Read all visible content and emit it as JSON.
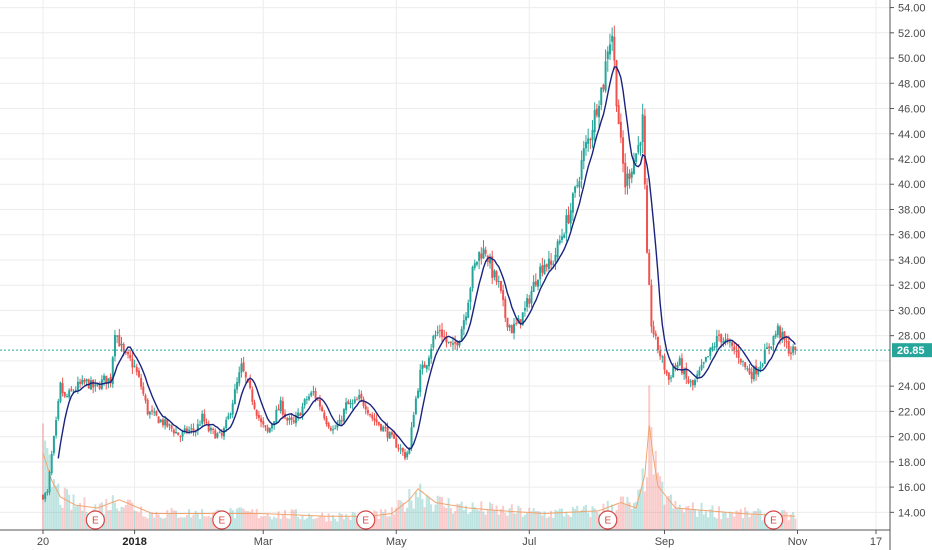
{
  "chart_data": {
    "type": "candlestick",
    "y_axis": {
      "ticks": [
        "14.00",
        "16.00",
        "18.00",
        "20.00",
        "22.00",
        "24.00",
        "26.00",
        "28.00",
        "30.00",
        "32.00",
        "34.00",
        "36.00",
        "38.00",
        "40.00",
        "42.00",
        "44.00",
        "46.00",
        "48.00",
        "50.00",
        "52.00",
        "54.00"
      ],
      "ylim": [
        12.6,
        54.6
      ],
      "grid": true
    },
    "x_axis": {
      "labels": [
        {
          "text": "20",
          "bold": false,
          "day": 0
        },
        {
          "text": "2018",
          "bold": true,
          "day": 42
        },
        {
          "text": "Mar",
          "bold": false,
          "day": 101
        },
        {
          "text": "May",
          "bold": false,
          "day": 162
        },
        {
          "text": "Jul",
          "bold": false,
          "day": 223
        },
        {
          "text": "Sep",
          "bold": false,
          "day": 285
        },
        {
          "text": "Nov",
          "bold": false,
          "day": 346
        },
        {
          "text": "17",
          "bold": false,
          "day": 382
        }
      ],
      "day_range": [
        -1,
        383
      ]
    },
    "price_path": [
      [
        0,
        15.3
      ],
      [
        2,
        15.5
      ],
      [
        4,
        18.5
      ],
      [
        6,
        21
      ],
      [
        8,
        24
      ],
      [
        10,
        23
      ],
      [
        13,
        23.5
      ],
      [
        16,
        24
      ],
      [
        20,
        24.3
      ],
      [
        24,
        23.8
      ],
      [
        28,
        24.5
      ],
      [
        31,
        24.5
      ],
      [
        33,
        28.5
      ],
      [
        35,
        27.5
      ],
      [
        37,
        26.5
      ],
      [
        40,
        26
      ],
      [
        42,
        25.5
      ],
      [
        45,
        24
      ],
      [
        48,
        22
      ],
      [
        52,
        21.5
      ],
      [
        56,
        21
      ],
      [
        60,
        20.5
      ],
      [
        63,
        20
      ],
      [
        66,
        20.5
      ],
      [
        70,
        20.5
      ],
      [
        73,
        21.5
      ],
      [
        76,
        20.5
      ],
      [
        79,
        20.2
      ],
      [
        82,
        20
      ],
      [
        85,
        21.5
      ],
      [
        88,
        23.5
      ],
      [
        91,
        25.5
      ],
      [
        94,
        24
      ],
      [
        97,
        22.5
      ],
      [
        100,
        21
      ],
      [
        103,
        20.3
      ],
      [
        106,
        21.5
      ],
      [
        109,
        22.5
      ],
      [
        112,
        21.3
      ],
      [
        115,
        21
      ],
      [
        118,
        22
      ],
      [
        121,
        23
      ],
      [
        124,
        23.5
      ],
      [
        127,
        22.5
      ],
      [
        130,
        21.3
      ],
      [
        133,
        20.5
      ],
      [
        136,
        21
      ],
      [
        139,
        22.5
      ],
      [
        142,
        22.5
      ],
      [
        145,
        23
      ],
      [
        148,
        22.5
      ],
      [
        151,
        21.5
      ],
      [
        154,
        21
      ],
      [
        157,
        20.5
      ],
      [
        160,
        19.8
      ],
      [
        163,
        19.2
      ],
      [
        166,
        18.5
      ],
      [
        168,
        19
      ],
      [
        170,
        22
      ],
      [
        173,
        25
      ],
      [
        176,
        26
      ],
      [
        179,
        27.8
      ],
      [
        182,
        28.5
      ],
      [
        185,
        27.5
      ],
      [
        188,
        27
      ],
      [
        191,
        28
      ],
      [
        194,
        30
      ],
      [
        197,
        33
      ],
      [
        200,
        34.5
      ],
      [
        203,
        34.8
      ],
      [
        206,
        33
      ],
      [
        209,
        32
      ],
      [
        212,
        29.5
      ],
      [
        215,
        28.5
      ],
      [
        218,
        29
      ],
      [
        221,
        30
      ],
      [
        224,
        31.5
      ],
      [
        227,
        33
      ],
      [
        230,
        33.8
      ],
      [
        233,
        33.5
      ],
      [
        236,
        35
      ],
      [
        239,
        36.5
      ],
      [
        242,
        38
      ],
      [
        245,
        40
      ],
      [
        248,
        42.5
      ],
      [
        251,
        44
      ],
      [
        253,
        45.5
      ],
      [
        255,
        47
      ],
      [
        257,
        48
      ],
      [
        259,
        51
      ],
      [
        261,
        52
      ],
      [
        263,
        47
      ],
      [
        265,
        43
      ],
      [
        267,
        40
      ],
      [
        269,
        41
      ],
      [
        271,
        42
      ],
      [
        273,
        43
      ],
      [
        275,
        45
      ],
      [
        277,
        34
      ],
      [
        279,
        29
      ],
      [
        281,
        27.5
      ],
      [
        283,
        26.5
      ],
      [
        285,
        25.5
      ],
      [
        287,
        24.5
      ],
      [
        289,
        25.5
      ],
      [
        292,
        25.8
      ],
      [
        295,
        24.5
      ],
      [
        298,
        24
      ],
      [
        301,
        25
      ],
      [
        304,
        26
      ],
      [
        307,
        27
      ],
      [
        310,
        28
      ],
      [
        313,
        27.5
      ],
      [
        316,
        27
      ],
      [
        319,
        26.5
      ],
      [
        322,
        25.5
      ],
      [
        325,
        25
      ],
      [
        328,
        25.5
      ],
      [
        331,
        26.5
      ],
      [
        334,
        27.5
      ],
      [
        337,
        28.5
      ],
      [
        340,
        27.5
      ],
      [
        343,
        26.7
      ],
      [
        345,
        26.85
      ]
    ],
    "volume_path": [
      [
        0,
        1.4
      ],
      [
        4,
        0.9
      ],
      [
        8,
        0.6
      ],
      [
        15,
        0.45
      ],
      [
        25,
        0.4
      ],
      [
        35,
        0.55
      ],
      [
        50,
        0.3
      ],
      [
        80,
        0.3
      ],
      [
        100,
        0.3
      ],
      [
        130,
        0.25
      ],
      [
        150,
        0.25
      ],
      [
        160,
        0.3
      ],
      [
        168,
        0.55
      ],
      [
        172,
        0.75
      ],
      [
        180,
        0.5
      ],
      [
        195,
        0.4
      ],
      [
        210,
        0.35
      ],
      [
        230,
        0.3
      ],
      [
        255,
        0.35
      ],
      [
        265,
        0.5
      ],
      [
        272,
        0.4
      ],
      [
        276,
        1.0
      ],
      [
        278,
        1.9
      ],
      [
        280,
        1.3
      ],
      [
        282,
        0.8
      ],
      [
        290,
        0.4
      ],
      [
        320,
        0.3
      ],
      [
        345,
        0.25
      ]
    ],
    "moving_average": {
      "period": 5,
      "color": "#1a237e"
    },
    "volume_ma_color": "#f2a46e",
    "up_color": "#26a69a",
    "down_color": "#ef5350",
    "earnings_markers": [
      {
        "label": "E",
        "day": 24
      },
      {
        "label": "E",
        "day": 82
      },
      {
        "label": "E",
        "day": 148
      },
      {
        "label": "E",
        "day": 259
      },
      {
        "label": "E",
        "day": 335
      }
    ],
    "last_price": {
      "label": "26.85",
      "value": 26.85,
      "color": "#26a69a"
    },
    "candle_count": 345
  }
}
